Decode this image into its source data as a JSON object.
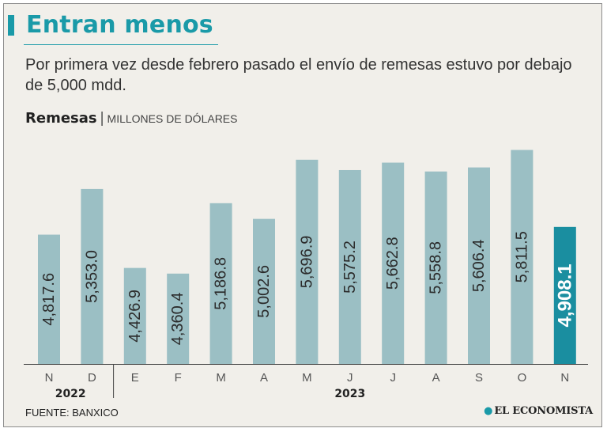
{
  "title": "Entran menos",
  "subtitle": "Por primera  vez desde febrero pasado el envío de remesas estuvo por debajo de 5,000 mdd.",
  "chart_heading": "Remesas",
  "chart_units": "MILLONES DE DÓLARES",
  "source": "FUENTE: BANXICO",
  "brand": "EL ECONOMISTA",
  "colors": {
    "bar": "#9bbfc4",
    "highlight": "#1a8ea0",
    "accent": "#1a9aa8"
  },
  "chart_data": {
    "type": "bar",
    "title": "Remesas",
    "ylabel": "Millones de dólares",
    "xlabel": "",
    "categories": [
      "N",
      "D",
      "E",
      "F",
      "M",
      "A",
      "M",
      "J",
      "J",
      "A",
      "S",
      "O",
      "N"
    ],
    "values": [
      4817.6,
      5353.0,
      4426.9,
      4360.4,
      5186.8,
      5002.6,
      5696.9,
      5575.2,
      5662.8,
      5558.8,
      5606.4,
      5811.5,
      4908.1
    ],
    "value_labels": [
      "4,817.6",
      "5,353.0",
      "4,426.9",
      "4,360.4",
      "5,186.8",
      "5,002.6",
      "5,696.9",
      "5,575.2",
      "5,662.8",
      "5,558.8",
      "5,606.4",
      "5,811.5",
      "4,908.1"
    ],
    "year_groups": [
      {
        "label": "2022",
        "from": 0,
        "to": 1
      },
      {
        "label": "2023",
        "from": 2,
        "to": 12
      }
    ],
    "highlight_index": 12,
    "ylim": [
      3300,
      5900
    ],
    "grid": false,
    "legend": "none"
  }
}
